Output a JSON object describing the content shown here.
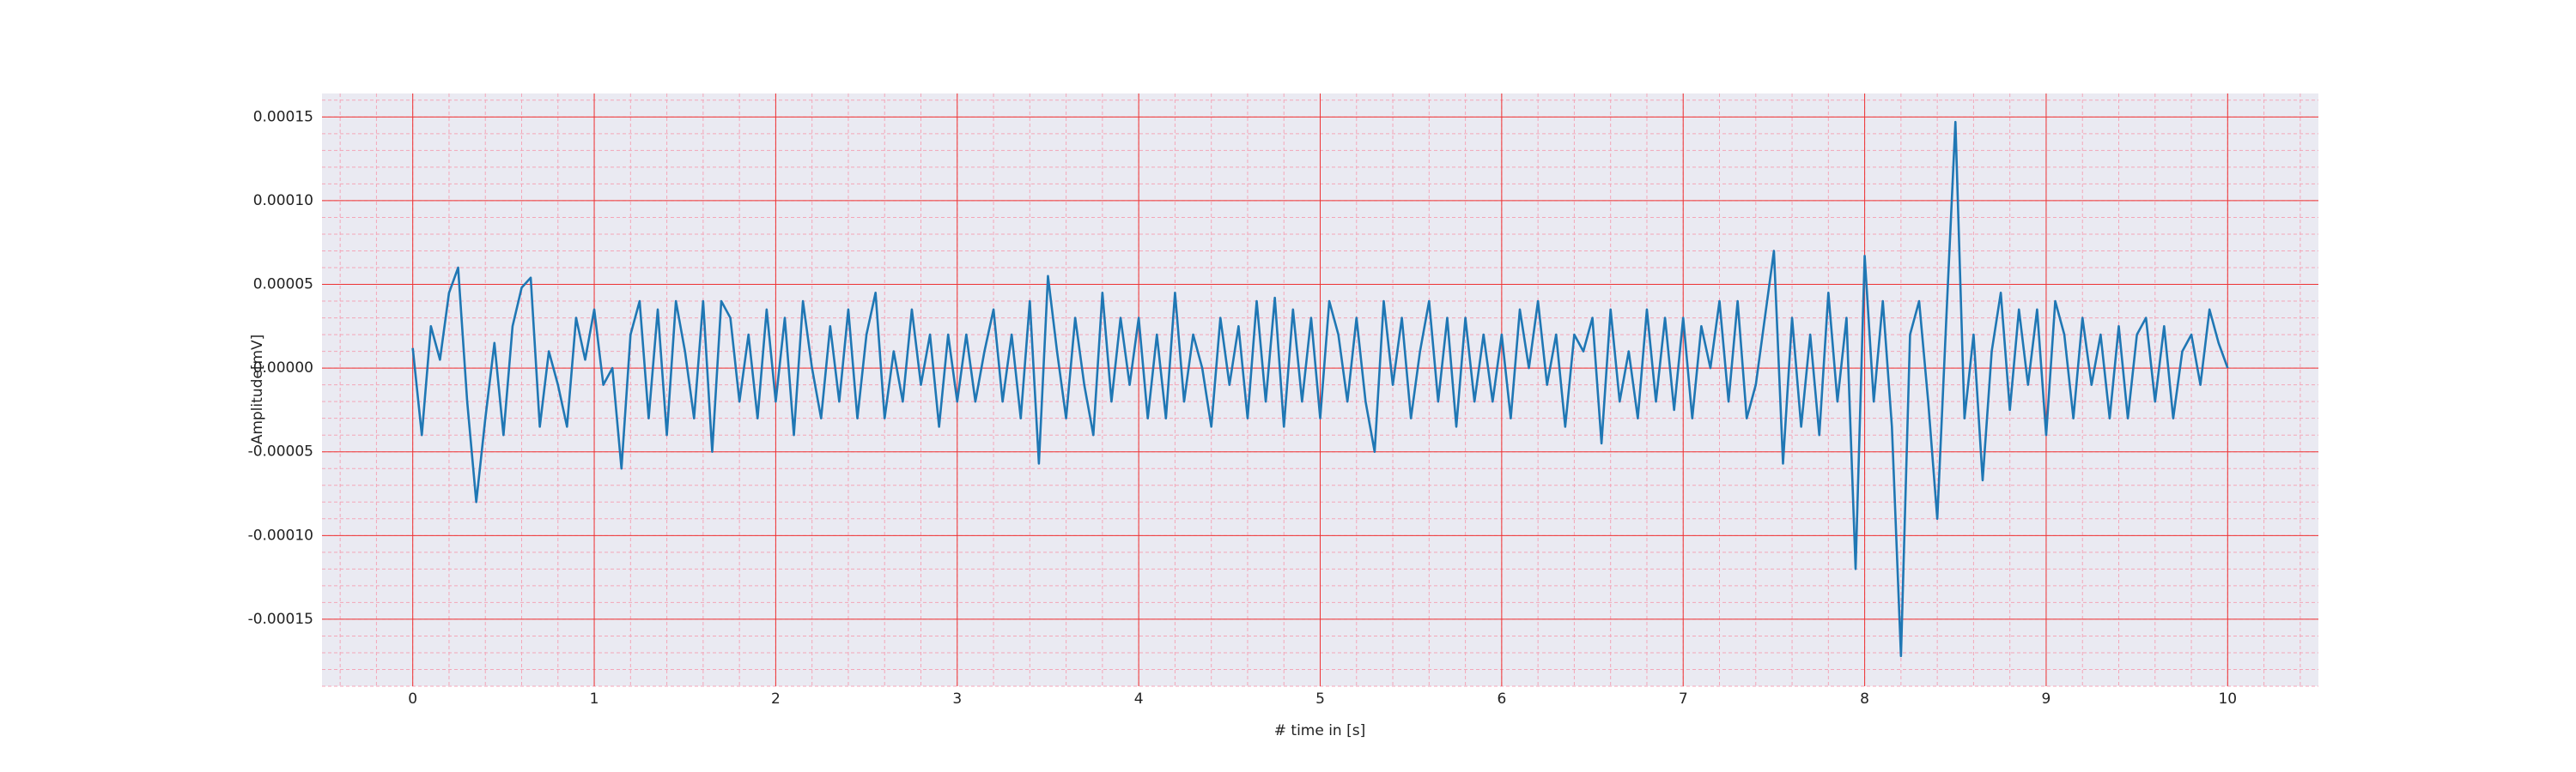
{
  "chart_data": {
    "type": "line",
    "xlabel": "# time in [s]",
    "ylabel": "Amplitude[mV]",
    "color": "#1f77b4",
    "grid": true,
    "minor_grid": true,
    "xlim": [
      -0.5,
      10.5
    ],
    "ylim": [
      -0.00019,
      0.000164
    ],
    "xticks": [
      0,
      1,
      2,
      3,
      4,
      5,
      6,
      7,
      8,
      9,
      10
    ],
    "yticks": [
      -0.00015,
      {
        "value": -0.0001,
        "label": "-0.00010"
      },
      -5e-05,
      {
        "value": 0,
        "label": "0.00000"
      },
      5e-05,
      {
        "value": 0.0001,
        "label": "0.00010"
      },
      0.00015
    ],
    "x": [
      0,
      0.05,
      0.1,
      0.15,
      0.2,
      0.25,
      0.3,
      0.35,
      0.4,
      0.45,
      0.5,
      0.55,
      0.6,
      0.65,
      0.7,
      0.75,
      0.8,
      0.85,
      0.9,
      0.95,
      1,
      1.05,
      1.1,
      1.15,
      1.2,
      1.25,
      1.3,
      1.35,
      1.4,
      1.45,
      1.5,
      1.55,
      1.6,
      1.65,
      1.7,
      1.75,
      1.8,
      1.85,
      1.9,
      1.95,
      2,
      2.05,
      2.1,
      2.15,
      2.2,
      2.25,
      2.3,
      2.35,
      2.4,
      2.45,
      2.5,
      2.55,
      2.6,
      2.65,
      2.7,
      2.75,
      2.8,
      2.85,
      2.9,
      2.95,
      3,
      3.05,
      3.1,
      3.15,
      3.2,
      3.25,
      3.3,
      3.35,
      3.4,
      3.45,
      3.5,
      3.55,
      3.6,
      3.65,
      3.7,
      3.75,
      3.8,
      3.85,
      3.9,
      3.95,
      4,
      4.05,
      4.1,
      4.15,
      4.2,
      4.25,
      4.3,
      4.35,
      4.4,
      4.45,
      4.5,
      4.55,
      4.6,
      4.65,
      4.7,
      4.75,
      4.8,
      4.85,
      4.9,
      4.95,
      5,
      5.05,
      5.1,
      5.15,
      5.2,
      5.25,
      5.3,
      5.35,
      5.4,
      5.45,
      5.5,
      5.55,
      5.6,
      5.65,
      5.7,
      5.75,
      5.8,
      5.85,
      5.9,
      5.95,
      6,
      6.05,
      6.1,
      6.15,
      6.2,
      6.25,
      6.3,
      6.35,
      6.4,
      6.45,
      6.5,
      6.55,
      6.6,
      6.65,
      6.7,
      6.75,
      6.8,
      6.85,
      6.9,
      6.95,
      7,
      7.05,
      7.1,
      7.15,
      7.2,
      7.25,
      7.3,
      7.35,
      7.4,
      7.45,
      7.5,
      7.55,
      7.6,
      7.65,
      7.7,
      7.75,
      7.8,
      7.85,
      7.9,
      7.95,
      8,
      8.05,
      8.1,
      8.15,
      8.2,
      8.25,
      8.3,
      8.35,
      8.4,
      8.45,
      8.5,
      8.55,
      8.6,
      8.65,
      8.7,
      8.75,
      8.8,
      8.85,
      8.9,
      8.95,
      9,
      9.05,
      9.1,
      9.15,
      9.2,
      9.25,
      9.3,
      9.35,
      9.4,
      9.45,
      9.5,
      9.55,
      9.6,
      9.65,
      9.7,
      9.75,
      9.8,
      9.85,
      9.9,
      9.95,
      10
    ],
    "values": [
      1.2e-05,
      -4e-05,
      2.5e-05,
      5e-06,
      4.5e-05,
      6e-05,
      -2e-05,
      -8e-05,
      -3e-05,
      1.5e-05,
      -4e-05,
      2.5e-05,
      4.8e-05,
      5.4e-05,
      -3.5e-05,
      1e-05,
      -1e-05,
      -3.5e-05,
      3e-05,
      5e-06,
      3.5e-05,
      -1e-05,
      0,
      -6e-05,
      2e-05,
      4e-05,
      -3e-05,
      3.5e-05,
      -4e-05,
      4e-05,
      1e-05,
      -3e-05,
      4e-05,
      -5e-05,
      4e-05,
      3e-05,
      -2e-05,
      2e-05,
      -3e-05,
      3.5e-05,
      -2e-05,
      3e-05,
      -4e-05,
      4e-05,
      0,
      -3e-05,
      2.5e-05,
      -2e-05,
      3.5e-05,
      -3e-05,
      2e-05,
      4.5e-05,
      -3e-05,
      1e-05,
      -2e-05,
      3.5e-05,
      -1e-05,
      2e-05,
      -3.5e-05,
      2e-05,
      -2e-05,
      2e-05,
      -2e-05,
      1e-05,
      3.5e-05,
      -2e-05,
      2e-05,
      -3e-05,
      4e-05,
      -5.7e-05,
      5.5e-05,
      1e-05,
      -3e-05,
      3e-05,
      -1e-05,
      -4e-05,
      4.5e-05,
      -2e-05,
      3e-05,
      -1e-05,
      3e-05,
      -3e-05,
      2e-05,
      -3e-05,
      4.5e-05,
      -2e-05,
      2e-05,
      0,
      -3.5e-05,
      3e-05,
      -1e-05,
      2.5e-05,
      -3e-05,
      4e-05,
      -2e-05,
      4.2e-05,
      -3.5e-05,
      3.5e-05,
      -2e-05,
      3e-05,
      -3e-05,
      4e-05,
      2e-05,
      -2e-05,
      3e-05,
      -2e-05,
      -5e-05,
      4e-05,
      -1e-05,
      3e-05,
      -3e-05,
      1e-05,
      4e-05,
      -2e-05,
      3e-05,
      -3.5e-05,
      3e-05,
      -2e-05,
      2e-05,
      -2e-05,
      2e-05,
      -3e-05,
      3.5e-05,
      0,
      4e-05,
      -1e-05,
      2e-05,
      -3.5e-05,
      2e-05,
      1e-05,
      3e-05,
      -4.5e-05,
      3.5e-05,
      -2e-05,
      1e-05,
      -3e-05,
      3.5e-05,
      -2e-05,
      3e-05,
      -2.5e-05,
      3e-05,
      -3e-05,
      2.5e-05,
      0,
      4e-05,
      -2e-05,
      4e-05,
      -3e-05,
      -1e-05,
      3e-05,
      7e-05,
      -5.7e-05,
      3e-05,
      -3.5e-05,
      2e-05,
      -4e-05,
      4.5e-05,
      -2e-05,
      3e-05,
      -0.00012,
      6.7e-05,
      -2e-05,
      4e-05,
      -3.5e-05,
      -0.000172,
      2e-05,
      4e-05,
      -2e-05,
      -9e-05,
      3e-05,
      0.000147,
      -3e-05,
      2e-05,
      -6.7e-05,
      1e-05,
      4.5e-05,
      -2.5e-05,
      3.5e-05,
      -1e-05,
      3.5e-05,
      -4e-05,
      4e-05,
      2e-05,
      -3e-05,
      3e-05,
      -1e-05,
      2e-05,
      -3e-05,
      2.5e-05,
      -3e-05,
      2e-05,
      3e-05,
      -2e-05,
      2.5e-05,
      -3e-05,
      1e-05,
      2e-05,
      -1e-05,
      3.5e-05,
      1.5e-05,
      0
    ]
  }
}
